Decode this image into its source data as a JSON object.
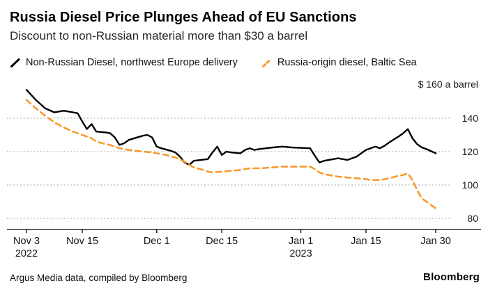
{
  "header": {
    "title": "Russia Diesel Price Plunges Ahead of EU Sanctions",
    "subtitle": "Discount to non-Russian material more than $30 a barrel"
  },
  "legend": [
    {
      "label": "Non-Russian Diesel, northwest Europe delivery",
      "color": "#000000",
      "dashed": false
    },
    {
      "label": "Russia-origin diesel, Baltic Sea",
      "color": "#f79b2e",
      "dashed": true
    }
  ],
  "footer": {
    "source": "Argus Media data, compiled by Bloomberg",
    "brand": "Bloomberg"
  },
  "chart_data": {
    "type": "line",
    "title": "Russia Diesel Price Plunges Ahead of EU Sanctions",
    "subtitle": "Discount to non-Russian material more than $30 a barrel",
    "unit_label": "$ 160 a barrel",
    "ylim": [
      80,
      160
    ],
    "yticks": [
      140,
      120,
      100,
      80
    ],
    "grid": "horizontal-dotted",
    "legend_position": "top",
    "x_axis": {
      "max_day": 88,
      "ticks": [
        {
          "day": 0,
          "label": "Nov 3",
          "sublabel": "2022"
        },
        {
          "day": 12,
          "label": "Nov 15"
        },
        {
          "day": 28,
          "label": "Dec 1"
        },
        {
          "day": 42,
          "label": "Dec 15"
        },
        {
          "day": 59,
          "label": "Jan 1",
          "sublabel": "2023"
        },
        {
          "day": 73,
          "label": "Jan 15"
        },
        {
          "day": 88,
          "label": "Jan 30"
        }
      ]
    },
    "series": [
      {
        "name": "Non-Russian Diesel, northwest Europe delivery",
        "color": "#000000",
        "dashed": false,
        "points": [
          [
            0,
            157
          ],
          [
            1,
            154
          ],
          [
            2,
            151
          ],
          [
            4,
            146
          ],
          [
            6,
            143.5
          ],
          [
            8,
            144.5
          ],
          [
            10,
            143.5
          ],
          [
            11,
            143
          ],
          [
            12,
            138
          ],
          [
            13,
            133.5
          ],
          [
            14,
            136.5
          ],
          [
            15,
            132
          ],
          [
            17,
            131.5
          ],
          [
            18,
            131
          ],
          [
            19,
            128.5
          ],
          [
            20,
            124
          ],
          [
            21,
            125
          ],
          [
            22,
            127
          ],
          [
            25,
            129.5
          ],
          [
            26,
            130
          ],
          [
            27,
            128.5
          ],
          [
            28,
            123
          ],
          [
            29,
            122
          ],
          [
            31,
            120.5
          ],
          [
            32,
            119.5
          ],
          [
            33,
            117
          ],
          [
            34,
            113.5
          ],
          [
            35,
            112
          ],
          [
            36,
            114.5
          ],
          [
            39,
            115.5
          ],
          [
            40,
            119.5
          ],
          [
            41,
            123
          ],
          [
            42,
            118
          ],
          [
            43,
            120
          ],
          [
            44,
            119.5
          ],
          [
            46,
            119
          ],
          [
            47,
            121
          ],
          [
            48,
            122
          ],
          [
            49,
            121
          ],
          [
            50,
            121.5
          ],
          [
            53,
            122.5
          ],
          [
            55,
            123
          ],
          [
            57,
            122.5
          ],
          [
            61,
            122
          ],
          [
            62,
            117.5
          ],
          [
            63,
            113.5
          ],
          [
            64,
            114.5
          ],
          [
            66,
            115.5
          ],
          [
            67,
            116
          ],
          [
            68,
            115.5
          ],
          [
            69,
            115
          ],
          [
            70,
            116
          ],
          [
            71,
            117
          ],
          [
            73,
            121
          ],
          [
            74,
            122
          ],
          [
            75,
            123
          ],
          [
            76,
            122
          ],
          [
            77,
            123.5
          ],
          [
            78,
            125.5
          ],
          [
            80,
            129
          ],
          [
            81,
            131
          ],
          [
            82,
            133.5
          ],
          [
            83,
            128
          ],
          [
            84,
            124.5
          ],
          [
            85,
            122.5
          ],
          [
            86,
            121.5
          ],
          [
            88,
            119
          ]
        ]
      },
      {
        "name": "Russia-origin diesel, Baltic Sea",
        "color": "#f79b2e",
        "dashed": true,
        "points": [
          [
            0,
            151
          ],
          [
            2,
            146
          ],
          [
            4,
            141.5
          ],
          [
            6,
            137.5
          ],
          [
            8,
            134.5
          ],
          [
            10,
            132
          ],
          [
            11,
            131
          ],
          [
            12,
            130
          ],
          [
            14,
            128
          ],
          [
            15,
            126
          ],
          [
            17,
            124.5
          ],
          [
            18,
            124
          ],
          [
            20,
            122
          ],
          [
            22,
            121
          ],
          [
            25,
            120
          ],
          [
            27,
            119.5
          ],
          [
            28,
            119
          ],
          [
            30,
            118
          ],
          [
            32,
            116.5
          ],
          [
            34,
            114
          ],
          [
            35,
            112
          ],
          [
            36,
            110.5
          ],
          [
            38,
            109
          ],
          [
            39,
            108
          ],
          [
            40,
            107.5
          ],
          [
            42,
            108
          ],
          [
            44,
            108.5
          ],
          [
            46,
            109
          ],
          [
            48,
            110
          ],
          [
            50,
            110
          ],
          [
            53,
            110.5
          ],
          [
            55,
            111
          ],
          [
            59,
            111
          ],
          [
            61,
            111
          ],
          [
            62,
            109.5
          ],
          [
            63,
            107.5
          ],
          [
            64,
            106.5
          ],
          [
            66,
            105.5
          ],
          [
            67,
            105
          ],
          [
            69,
            104.5
          ],
          [
            71,
            104
          ],
          [
            73,
            103.5
          ],
          [
            74,
            103
          ],
          [
            76,
            103
          ],
          [
            78,
            104
          ],
          [
            80,
            105.5
          ],
          [
            81,
            106
          ],
          [
            82,
            107
          ],
          [
            83,
            103
          ],
          [
            84,
            97
          ],
          [
            85,
            92
          ],
          [
            88,
            86
          ]
        ]
      }
    ]
  }
}
